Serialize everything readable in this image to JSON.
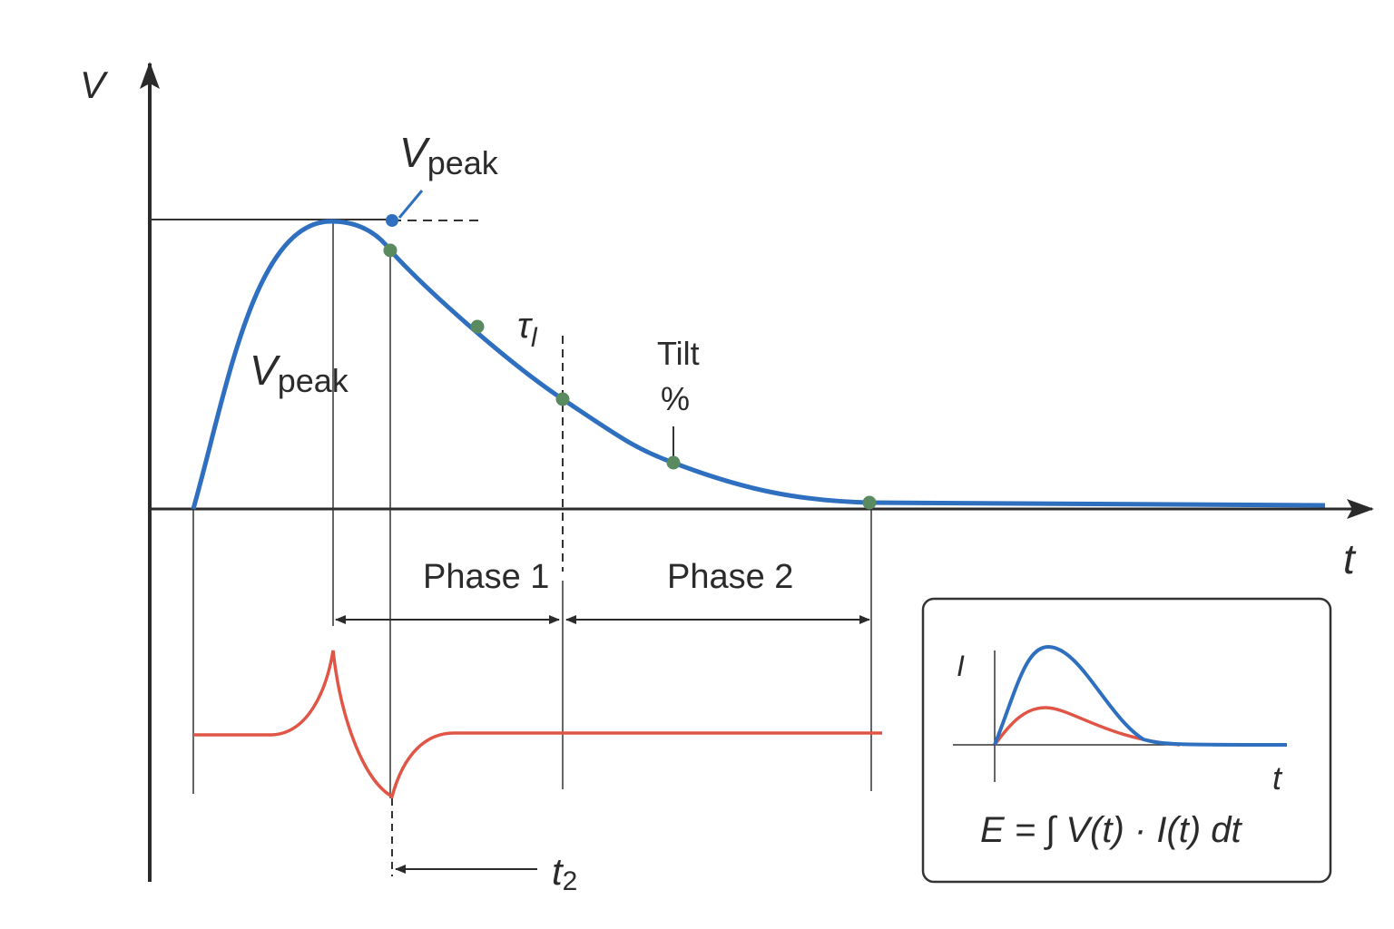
{
  "axes": {
    "y_label": "V",
    "x_label": "t"
  },
  "labels": {
    "v_peak_top": {
      "base": "V",
      "sub": "peak"
    },
    "v_peak_curve": {
      "base": "V",
      "sub": "peak"
    },
    "tau": {
      "base": "τ",
      "sub": "l"
    },
    "tilt": [
      "Tilt",
      "%"
    ],
    "t2": {
      "base": "t",
      "sub": "2"
    }
  },
  "phases": [
    "Phase 1",
    "Phase 2"
  ],
  "inset": {
    "y_label": "I",
    "x_label": "t",
    "formula": "E = ∫ V(t) · I(t) dt"
  }
}
